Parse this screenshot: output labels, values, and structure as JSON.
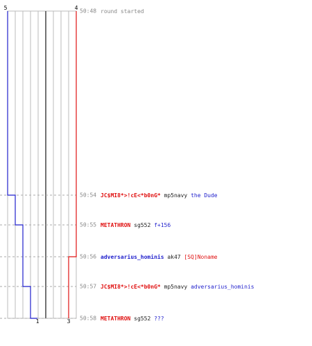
{
  "teams": {
    "blue": {
      "color": "#1f1fcc",
      "start_count": "5",
      "end_count": "1"
    },
    "red": {
      "color": "#e01010",
      "start_count": "4",
      "end_count": "3"
    }
  },
  "colors": {
    "timestamp": "#888888",
    "gridline": "#bbbbbb",
    "gridline_dark": "#444444",
    "dashed": "#aaaaaa",
    "neutral_text": "#222222"
  },
  "events": [
    {
      "time": "50:48",
      "text_segments": [
        {
          "text": "round started",
          "color": "#888888",
          "bold": false
        }
      ]
    },
    {
      "time": "50:54",
      "text_segments": [
        {
          "text": "JC$MI8*>!cE<*b0nG*",
          "color": "#e01010",
          "bold": true
        },
        {
          "text": " mp5navy ",
          "color": "#222222",
          "bold": false
        },
        {
          "text": "the Dude",
          "color": "#1f1fcc",
          "bold": false
        }
      ]
    },
    {
      "time": "50:55",
      "text_segments": [
        {
          "text": "METATHRON",
          "color": "#e01010",
          "bold": true
        },
        {
          "text": " sg552 ",
          "color": "#222222",
          "bold": false
        },
        {
          "text": "f+156",
          "color": "#1f1fcc",
          "bold": false
        }
      ]
    },
    {
      "time": "50:56",
      "text_segments": [
        {
          "text": "adversarius_hominis",
          "color": "#1f1fcc",
          "bold": true
        },
        {
          "text": " ak47 ",
          "color": "#222222",
          "bold": false
        },
        {
          "text": "[SQ]Noname",
          "color": "#e01010",
          "bold": false
        }
      ]
    },
    {
      "time": "50:57",
      "text_segments": [
        {
          "text": "JC$MI8*>!cE<*b0nG*",
          "color": "#e01010",
          "bold": true
        },
        {
          "text": " mp5navy ",
          "color": "#222222",
          "bold": false
        },
        {
          "text": "adversarius_hominis",
          "color": "#1f1fcc",
          "bold": false
        }
      ]
    },
    {
      "time": "50:58",
      "text_segments": [
        {
          "text": "METATHRON",
          "color": "#e01010",
          "bold": true
        },
        {
          "text": " sg552 ",
          "color": "#222222",
          "bold": false
        },
        {
          "text": "???",
          "color": "#1f1fcc",
          "bold": false
        }
      ]
    }
  ],
  "alive_counts": {
    "blue": [
      5,
      4,
      3,
      3,
      2,
      1
    ],
    "red": [
      4,
      4,
      4,
      3,
      3,
      3
    ]
  }
}
